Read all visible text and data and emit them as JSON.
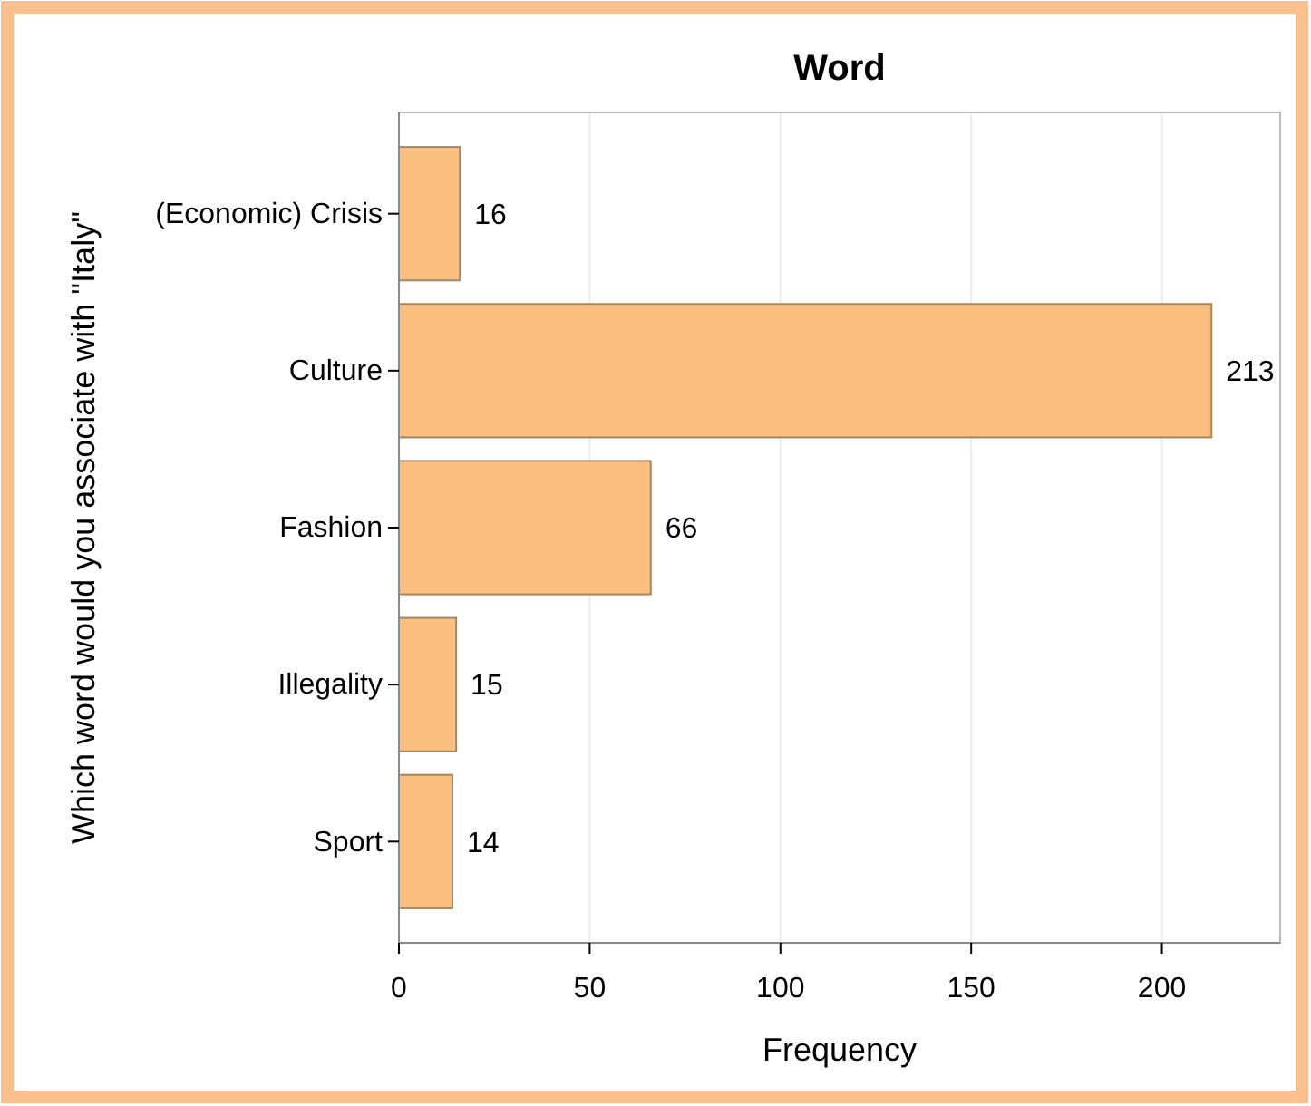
{
  "chart_data": {
    "type": "bar",
    "orientation": "horizontal",
    "title": "Word",
    "xlabel": "Frequency",
    "ylabel": "Which word would you associate with \"Italy\"",
    "categories": [
      "(Economic) Crisis",
      "Culture",
      "Fashion",
      "Illegality",
      "Sport"
    ],
    "values": [
      16,
      213,
      66,
      15,
      14
    ],
    "color": "#fdbf7f",
    "data_labels": true,
    "xlim": [
      0,
      231
    ],
    "xticks": [
      0,
      50,
      100,
      150,
      200
    ],
    "grid": "x"
  }
}
